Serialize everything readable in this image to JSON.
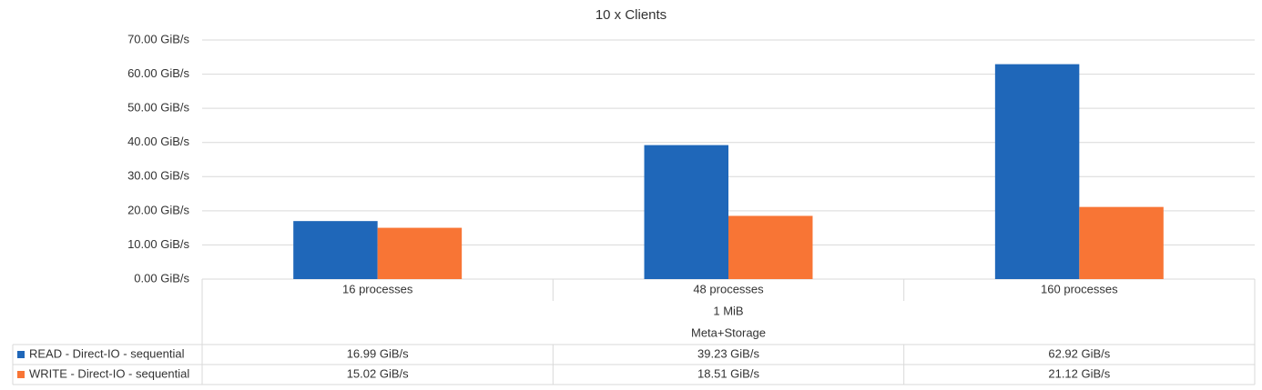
{
  "chart_data": {
    "type": "bar",
    "title": "10 x Clients",
    "categories": [
      "16 processes",
      "48 processes",
      "160 processes"
    ],
    "category_groups": [
      "1 MiB",
      "Meta+Storage"
    ],
    "series": [
      {
        "name": "READ - Direct-IO - sequential",
        "color": "#1f67b9",
        "values": [
          16.99,
          39.23,
          62.92
        ],
        "value_labels": [
          "16.99 GiB/s",
          "39.23 GiB/s",
          "62.92 GiB/s"
        ]
      },
      {
        "name": "WRITE - Direct-IO - sequential",
        "color": "#f87535",
        "values": [
          15.02,
          18.51,
          21.12
        ],
        "value_labels": [
          "15.02 GiB/s",
          "18.51 GiB/s",
          "21.12 GiB/s"
        ]
      }
    ],
    "ylim": [
      0,
      70
    ],
    "yticks": [
      {
        "value": 0,
        "label": "0.00 GiB/s"
      },
      {
        "value": 10,
        "label": "10.00 GiB/s"
      },
      {
        "value": 20,
        "label": "20.00 GiB/s"
      },
      {
        "value": 30,
        "label": "30.00 GiB/s"
      },
      {
        "value": 40,
        "label": "40.00 GiB/s"
      },
      {
        "value": 50,
        "label": "50.00 GiB/s"
      },
      {
        "value": 60,
        "label": "60.00 GiB/s"
      },
      {
        "value": 70,
        "label": "70.00 GiB/s"
      }
    ],
    "grid": true
  }
}
